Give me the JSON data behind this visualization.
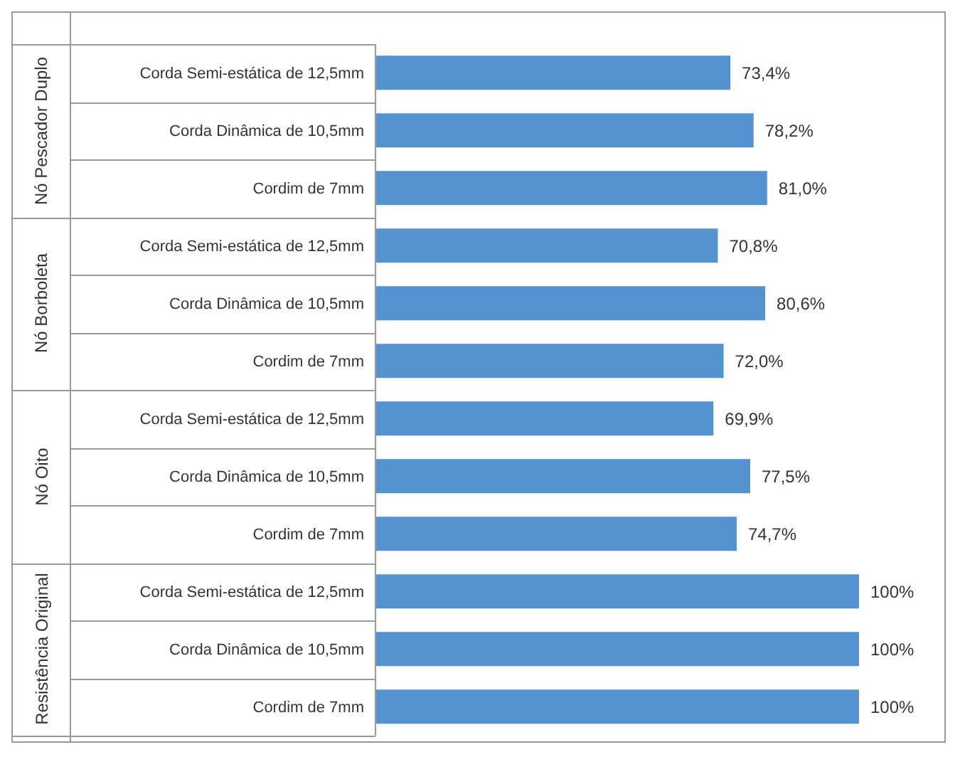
{
  "chart_data": {
    "type": "bar",
    "orientation": "horizontal",
    "categories": [
      "Corda Semi-estática  de 12,5mm",
      "Corda Dinâmica  de 10,5mm",
      "Cordim de 7mm",
      "Corda Semi-estática  de 12,5mm",
      "Corda Dinâmica  de 10,5mm",
      "Cordim de 7mm",
      "Corda Semi-estática  de 12,5mm",
      "Corda Dinâmica  de 10,5mm",
      "Cordim de 7mm",
      "Corda Semi-estática  de 12,5mm",
      "Corda Dinâmica  de 10,5mm",
      "Cordim de 7mm"
    ],
    "values": [
      73.4,
      78.2,
      81.0,
      70.8,
      80.6,
      72.0,
      69.9,
      77.5,
      74.7,
      100,
      100,
      100
    ],
    "value_labels": [
      "73,4%",
      "78,2%",
      "81,0%",
      "70,8%",
      "80,6%",
      "72,0%",
      "69,9%",
      "77,5%",
      "74,7%",
      "100%",
      "100%",
      "100%"
    ],
    "color": "#5593d0",
    "annotations": [
      "Nó Pescador Duplo",
      "Nó Borboleta",
      "Nó Oito",
      "Resistência Original"
    ]
  }
}
